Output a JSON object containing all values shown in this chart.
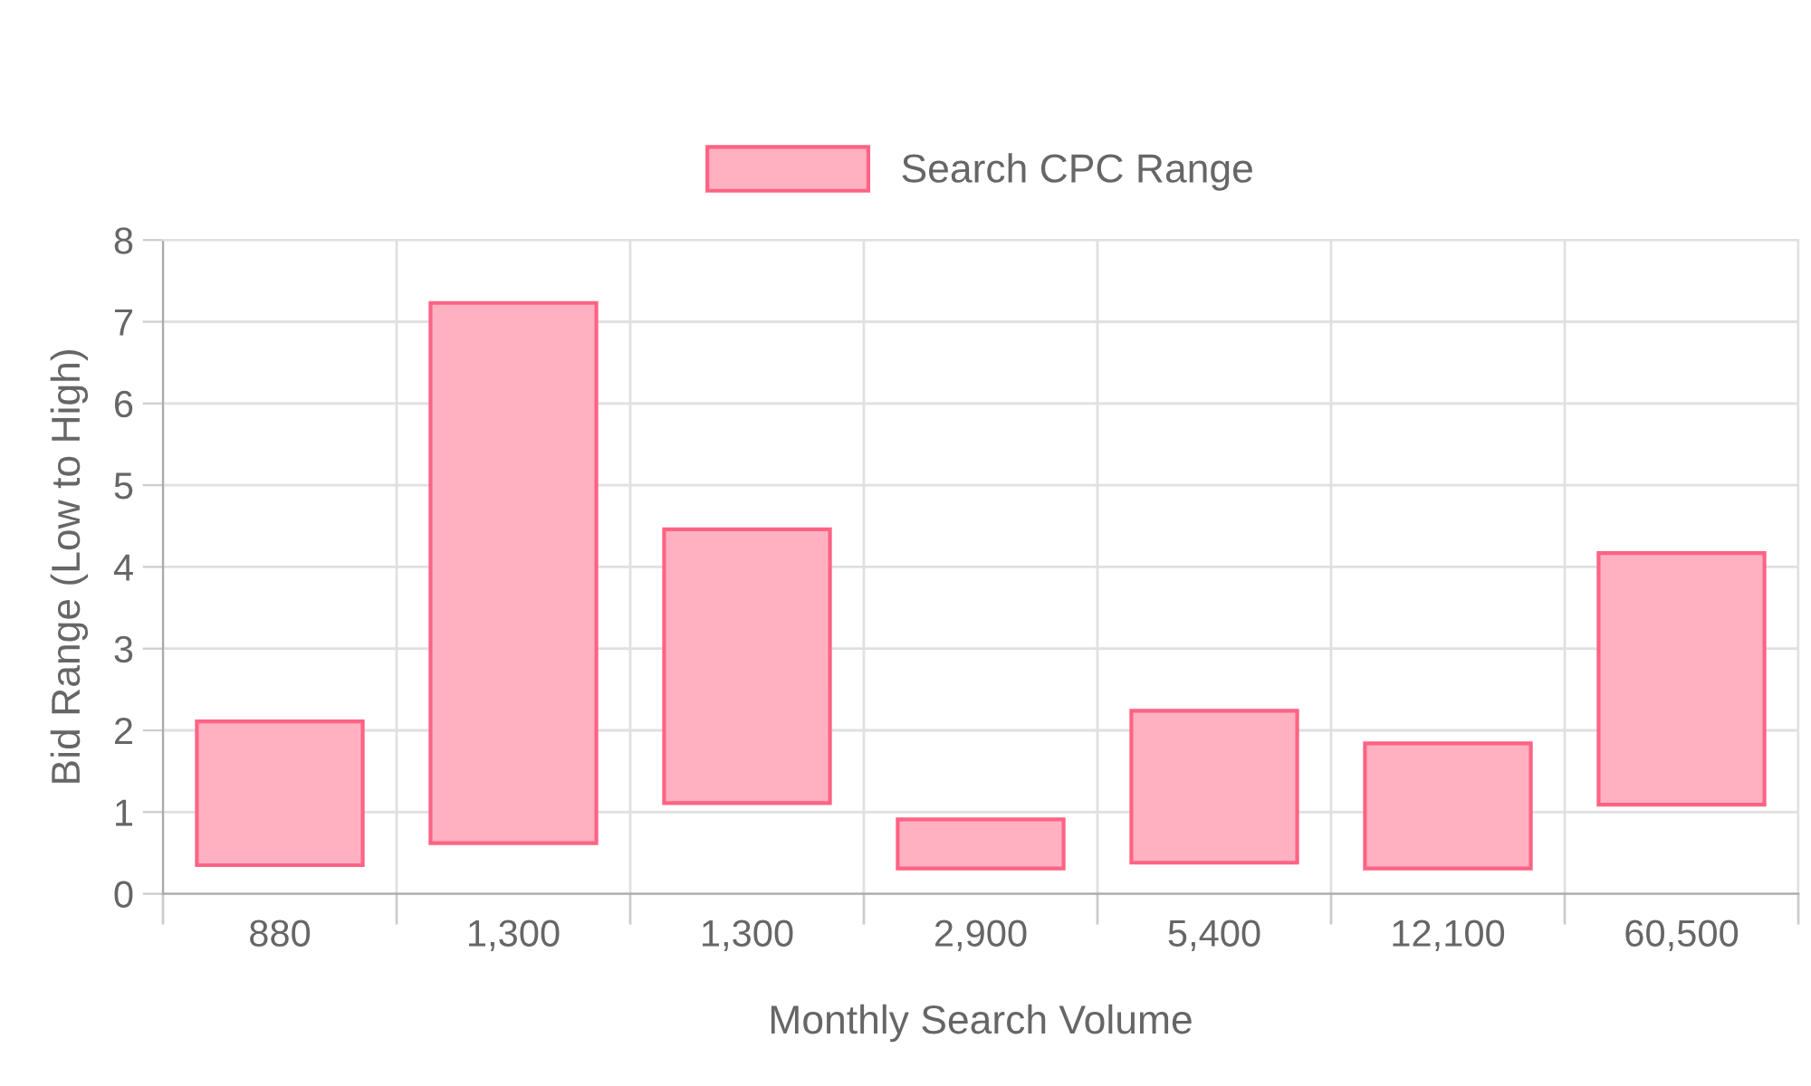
{
  "chart_data": {
    "type": "bar",
    "xlabel": "Monthly Search Volume",
    "ylabel": "Bid Range (Low to High)",
    "categories": [
      "880",
      "1,300",
      "1,300",
      "2,900",
      "5,400",
      "12,100",
      "60,500"
    ],
    "series": [
      {
        "name": "Search CPC Range",
        "color": "#ff6384",
        "values": [
          1.76,
          6.61,
          3.35,
          0.6,
          1.86,
          1.53,
          3.08
        ],
        "base": [
          0.35,
          0.62,
          1.11,
          0.31,
          0.38,
          0.31,
          1.09
        ]
      }
    ],
    "ylim": [
      0,
      8
    ],
    "yticks": [
      0,
      1,
      2,
      3,
      4,
      5,
      6,
      7,
      8
    ],
    "grid": true,
    "legend": "top"
  }
}
